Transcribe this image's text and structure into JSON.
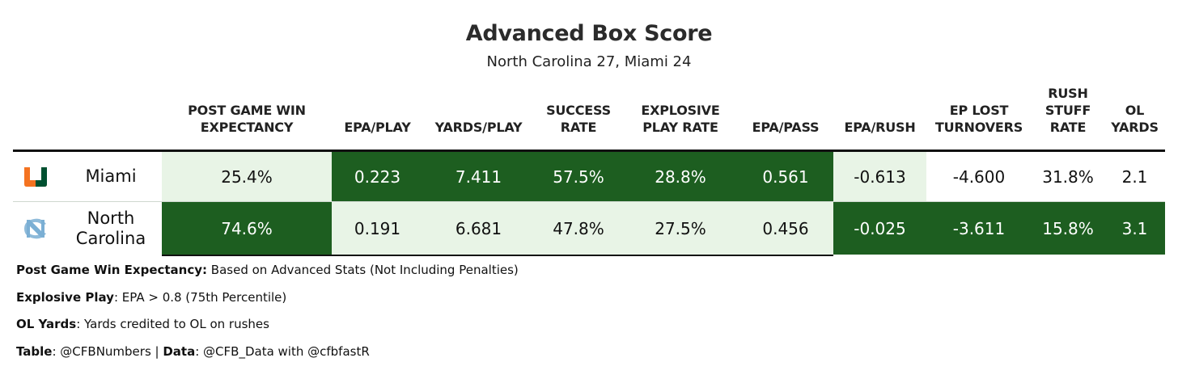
{
  "colors": {
    "dark_green": "#1d5e20",
    "light_green": "#e8f4e6",
    "miami_orange": "#f47321",
    "miami_green": "#005030",
    "unc_blue": "#7bafd4"
  },
  "chart_data": {
    "type": "table",
    "title": "Advanced Box Score",
    "subtitle": "North Carolina 27, Miami 24",
    "columns": [
      {
        "key": "wp",
        "label": [
          "POST GAME WIN",
          "EXPECTANCY"
        ]
      },
      {
        "key": "epa_play",
        "label": [
          "EPA/PLAY"
        ]
      },
      {
        "key": "yards_play",
        "label": [
          "YARDS/PLAY"
        ]
      },
      {
        "key": "success",
        "label": [
          "SUCCESS",
          "RATE"
        ]
      },
      {
        "key": "explosive",
        "label": [
          "EXPLOSIVE",
          "PLAY RATE"
        ]
      },
      {
        "key": "epa_pass",
        "label": [
          "EPA/PASS"
        ]
      },
      {
        "key": "epa_rush",
        "label": [
          "EPA/RUSH"
        ]
      },
      {
        "key": "ep_lost",
        "label": [
          "EP LOST",
          "TURNOVERS"
        ]
      },
      {
        "key": "stuff",
        "label": [
          "RUSH",
          "STUFF",
          "RATE"
        ]
      },
      {
        "key": "ol_yards",
        "label": [
          "OL",
          "YARDS"
        ]
      }
    ],
    "rows": [
      {
        "team": "Miami",
        "logo": "miami-u-logo-icon",
        "values": [
          "25.4%",
          "0.223",
          "7.411",
          "57.5%",
          "28.8%",
          "0.561",
          "-0.613",
          "-4.600",
          "31.8%",
          "2.1"
        ],
        "shading": [
          "light",
          "dark",
          "dark",
          "dark",
          "dark",
          "dark",
          "light",
          "none",
          "none",
          "none"
        ]
      },
      {
        "team": "North Carolina",
        "logo": "unc-nc-logo-icon",
        "values": [
          "74.6%",
          "0.191",
          "6.681",
          "47.8%",
          "27.5%",
          "0.456",
          "-0.025",
          "-3.611",
          "15.8%",
          "3.1"
        ],
        "shading": [
          "dark",
          "light",
          "light",
          "light",
          "light",
          "light",
          "dark",
          "dark",
          "dark",
          "dark"
        ]
      }
    ]
  },
  "notes": [
    {
      "label": "Post Game Win Expectancy:",
      "text": " Based on Advanced Stats (Not Including Penalties)"
    },
    {
      "label": "Explosive Play",
      "text": ": EPA > 0.8 (75th Percentile)"
    },
    {
      "label": "OL Yards",
      "text": ": Yards credited to OL on rushes"
    }
  ],
  "credit": {
    "label1": "Table",
    "text1": ": @CFBNumbers | ",
    "label2": "Data",
    "text2": ": @CFB_Data with @cfbfastR"
  }
}
